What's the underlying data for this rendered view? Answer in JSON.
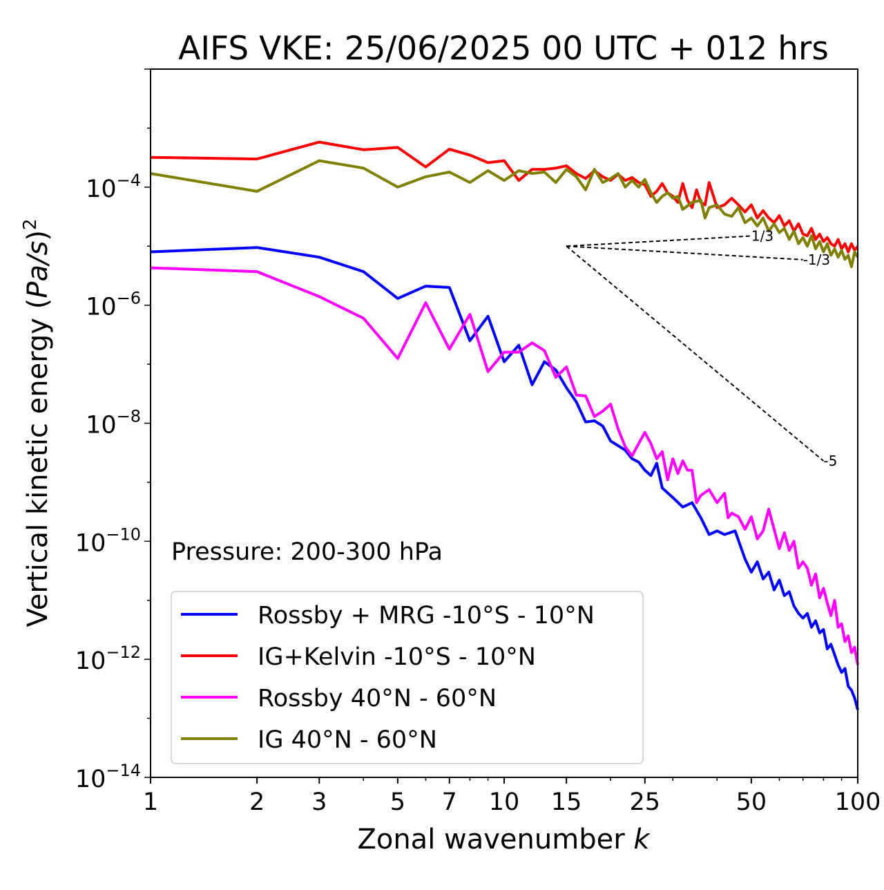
{
  "chart_data": {
    "type": "line",
    "title": "AIFS VKE: 25/06/2025 00 UTC + 012 hrs",
    "xlabel": "Zonal wavenumber k",
    "ylabel": "Vertical kinetic energy (Pa/s)²",
    "x_scale": "log",
    "y_scale": "log",
    "xlim": [
      1,
      100
    ],
    "ylim": [
      1e-14,
      0.01
    ],
    "x_ticks": [
      1,
      2,
      3,
      5,
      7,
      10,
      15,
      25,
      50,
      100
    ],
    "y_ticks": [
      {
        "value": 0.0001,
        "base": "10",
        "exp": "−4"
      },
      {
        "value": 1e-06,
        "base": "10",
        "exp": "−6"
      },
      {
        "value": 1e-08,
        "base": "10",
        "exp": "−8"
      },
      {
        "value": 1e-10,
        "base": "10",
        "exp": "−10"
      },
      {
        "value": 1e-12,
        "base": "10",
        "exp": "−12"
      },
      {
        "value": 1e-14,
        "base": "10",
        "exp": "−14"
      }
    ],
    "grid": false,
    "legend_position": "lower-left",
    "annotation": "Pressure: 200-300 hPa",
    "reference_slopes": [
      {
        "label": "1/3",
        "x": [
          15,
          50
        ],
        "y": [
          1e-05,
          1.49e-05
        ]
      },
      {
        "label": "-1/3",
        "x": [
          15,
          70
        ],
        "y": [
          1e-05,
          5.9e-06
        ]
      },
      {
        "label": "-5",
        "x": [
          15,
          80
        ],
        "y": [
          1e-05,
          2.3e-09
        ]
      }
    ],
    "series": [
      {
        "name": "Rossby + MRG -10°S - 10°N",
        "color": "#0000ff",
        "points": [
          [
            1,
            8e-06
          ],
          [
            2,
            9.5e-06
          ],
          [
            3,
            6.5e-06
          ],
          [
            4,
            3.7e-06
          ],
          [
            5,
            1.3e-06
          ],
          [
            6,
            2.1e-06
          ],
          [
            7,
            2e-06
          ],
          [
            8,
            2.5e-07
          ],
          [
            9,
            6.5e-07
          ],
          [
            10,
            1.1e-07
          ],
          [
            11,
            2.1e-07
          ],
          [
            12,
            4.5e-08
          ],
          [
            13,
            1.1e-07
          ],
          [
            14,
            8e-08
          ],
          [
            15,
            4e-08
          ],
          [
            16,
            2.3e-08
          ],
          [
            17,
            1.05e-08
          ],
          [
            18,
            1.1e-08
          ],
          [
            19,
            9e-09
          ],
          [
            20,
            5e-09
          ],
          [
            22,
            3.5e-09
          ],
          [
            23,
            2.5e-09
          ],
          [
            24,
            2.2e-09
          ],
          [
            25,
            1.6e-09
          ],
          [
            26,
            1.3e-09
          ],
          [
            27,
            2.1e-09
          ],
          [
            28,
            8e-10
          ],
          [
            30,
            5.5e-10
          ],
          [
            32,
            3.8e-10
          ],
          [
            34,
            4.5e-10
          ],
          [
            36,
            2.5e-10
          ],
          [
            38,
            1.3e-10
          ],
          [
            40,
            1.5e-10
          ],
          [
            42,
            1.3e-10
          ],
          [
            45,
            1.5e-10
          ],
          [
            48,
            5e-11
          ],
          [
            50,
            3e-11
          ],
          [
            52,
            4.5e-11
          ],
          [
            54,
            2.3e-11
          ],
          [
            56,
            3e-11
          ],
          [
            58,
            1.5e-11
          ],
          [
            60,
            2.2e-11
          ],
          [
            62,
            1.2e-11
          ],
          [
            64,
            1.4e-11
          ],
          [
            66,
            8e-12
          ],
          [
            68,
            6e-12
          ],
          [
            70,
            5e-12
          ],
          [
            72,
            6e-12
          ],
          [
            74,
            3.5e-12
          ],
          [
            76,
            4.5e-12
          ],
          [
            78,
            2.8e-12
          ],
          [
            80,
            3.2e-12
          ],
          [
            82,
            1.5e-12
          ],
          [
            84,
            1.8e-12
          ],
          [
            86,
            1.2e-12
          ],
          [
            88,
            8e-13
          ],
          [
            90,
            6e-13
          ],
          [
            92,
            7e-13
          ],
          [
            94,
            3.5e-13
          ],
          [
            96,
            3e-13
          ],
          [
            98,
            2.2e-13
          ],
          [
            100,
            1.4e-13
          ]
        ]
      },
      {
        "name": "IG+Kelvin -10°S - 10°N",
        "color": "#ff0000",
        "points": [
          [
            1,
            0.00032
          ],
          [
            2,
            0.0003
          ],
          [
            3,
            0.00058
          ],
          [
            4,
            0.00043
          ],
          [
            5,
            0.00047
          ],
          [
            6,
            0.00022
          ],
          [
            7,
            0.00044
          ],
          [
            8,
            0.00035
          ],
          [
            9,
            0.00026
          ],
          [
            10,
            0.00028
          ],
          [
            11,
            0.00013
          ],
          [
            12,
            0.0002
          ],
          [
            13,
            0.0002
          ],
          [
            14,
            0.00021
          ],
          [
            15,
            0.00023
          ],
          [
            16,
            0.00017
          ],
          [
            17,
            0.00014
          ],
          [
            18,
            0.00019
          ],
          [
            19,
            0.00015
          ],
          [
            20,
            0.00013
          ],
          [
            21,
            0.000165
          ],
          [
            22,
            0.00013
          ],
          [
            23,
            0.000145
          ],
          [
            24,
            0.00012
          ],
          [
            25,
            0.00011
          ],
          [
            26,
            7e-05
          ],
          [
            27,
            8.5e-05
          ],
          [
            28,
            0.000115
          ],
          [
            29,
            8e-05
          ],
          [
            30,
            7e-05
          ],
          [
            31,
            5.5e-05
          ],
          [
            32,
            0.000115
          ],
          [
            33,
            6e-05
          ],
          [
            34,
            4.5e-05
          ],
          [
            35,
            9e-05
          ],
          [
            36,
            5.5e-05
          ],
          [
            37,
            5e-05
          ],
          [
            38,
            0.00012
          ],
          [
            40,
            4.5e-05
          ],
          [
            42,
            5e-05
          ],
          [
            44,
            6.5e-05
          ],
          [
            46,
            5e-05
          ],
          [
            48,
            3.8e-05
          ],
          [
            50,
            5e-05
          ],
          [
            52,
            3e-05
          ],
          [
            54,
            4e-05
          ],
          [
            56,
            3e-05
          ],
          [
            58,
            2.5e-05
          ],
          [
            60,
            3.3e-05
          ],
          [
            62,
            2.2e-05
          ],
          [
            64,
            2.7e-05
          ],
          [
            66,
            1.8e-05
          ],
          [
            68,
            2.4e-05
          ],
          [
            70,
            1.6e-05
          ],
          [
            72,
            1.5e-05
          ],
          [
            74,
            2e-05
          ],
          [
            76,
            1.3e-05
          ],
          [
            78,
            1.6e-05
          ],
          [
            80,
            1.2e-05
          ],
          [
            82,
            1.4e-05
          ],
          [
            84,
            1.1e-05
          ],
          [
            86,
            1e-05
          ],
          [
            88,
            1.3e-05
          ],
          [
            90,
            9e-06
          ],
          [
            92,
            1.1e-05
          ],
          [
            94,
            8e-06
          ],
          [
            96,
            1.1e-05
          ],
          [
            98,
            8.5e-06
          ],
          [
            100,
            1e-05
          ]
        ]
      },
      {
        "name": "Rossby 40°N - 60°N",
        "color": "#ff00ff",
        "points": [
          [
            1,
            4.3e-06
          ],
          [
            2,
            3.7e-06
          ],
          [
            3,
            1.4e-06
          ],
          [
            4,
            6e-07
          ],
          [
            5,
            1.25e-07
          ],
          [
            6,
            1.1e-06
          ],
          [
            7,
            1.8e-07
          ],
          [
            8,
            7e-07
          ],
          [
            9,
            7.5e-08
          ],
          [
            10,
            1.6e-07
          ],
          [
            11,
            1.6e-07
          ],
          [
            12,
            2.3e-07
          ],
          [
            13,
            1.7e-07
          ],
          [
            14,
            6e-08
          ],
          [
            15,
            9e-08
          ],
          [
            16,
            3e-08
          ],
          [
            17,
            2.9e-08
          ],
          [
            18,
            1.3e-08
          ],
          [
            19,
            1.6e-08
          ],
          [
            20,
            2.1e-08
          ],
          [
            21,
            8e-09
          ],
          [
            22,
            4e-09
          ],
          [
            23,
            2.8e-09
          ],
          [
            24,
            4.5e-09
          ],
          [
            25,
            7e-09
          ],
          [
            26,
            4.5e-09
          ],
          [
            27,
            2.5e-09
          ],
          [
            28,
            3.3e-09
          ],
          [
            29,
            1.1e-09
          ],
          [
            30,
            2.5e-09
          ],
          [
            31,
            1.4e-09
          ],
          [
            32,
            2.3e-09
          ],
          [
            33,
            1.6e-09
          ],
          [
            34,
            1.6e-09
          ],
          [
            35,
            4.5e-10
          ],
          [
            36,
            6e-10
          ],
          [
            38,
            7.5e-10
          ],
          [
            40,
            4.5e-10
          ],
          [
            42,
            6.5e-10
          ],
          [
            43,
            2.5e-10
          ],
          [
            44,
            3e-10
          ],
          [
            46,
            2.6e-10
          ],
          [
            48,
            1.6e-10
          ],
          [
            50,
            2.6e-10
          ],
          [
            52,
            1.1e-10
          ],
          [
            54,
            1.5e-10
          ],
          [
            56,
            3.5e-10
          ],
          [
            58,
            1.6e-10
          ],
          [
            60,
            7.5e-11
          ],
          [
            62,
            1.4e-10
          ],
          [
            64,
            7e-11
          ],
          [
            66,
            1e-10
          ],
          [
            68,
            3.5e-11
          ],
          [
            70,
            4.5e-11
          ],
          [
            72,
            3.5e-11
          ],
          [
            74,
            1.8e-11
          ],
          [
            76,
            2.8e-11
          ],
          [
            78,
            1.1e-11
          ],
          [
            80,
            1.6e-11
          ],
          [
            82,
            9e-12
          ],
          [
            84,
            5.5e-12
          ],
          [
            86,
            1e-11
          ],
          [
            88,
            3.5e-12
          ],
          [
            90,
            4e-12
          ],
          [
            92,
            2e-12
          ],
          [
            94,
            2.5e-12
          ],
          [
            96,
            1.3e-12
          ],
          [
            98,
            1.6e-12
          ],
          [
            100,
            8e-13
          ]
        ]
      },
      {
        "name": "IG 40°N - 60°N",
        "color": "#808000",
        "points": [
          [
            1,
            0.00017
          ],
          [
            2,
            8.5e-05
          ],
          [
            3,
            0.00028
          ],
          [
            4,
            0.00021
          ],
          [
            5,
            0.0001
          ],
          [
            6,
            0.00015
          ],
          [
            7,
            0.00018
          ],
          [
            8,
            0.00012
          ],
          [
            9,
            0.00019
          ],
          [
            10,
            0.00013
          ],
          [
            11,
            0.00019
          ],
          [
            12,
            0.00017
          ],
          [
            13,
            0.00018
          ],
          [
            14,
            0.00012
          ],
          [
            15,
            0.0002
          ],
          [
            16,
            0.00015
          ],
          [
            17,
            9e-05
          ],
          [
            18,
            0.0002
          ],
          [
            19,
            0.00012
          ],
          [
            20,
            0.00014
          ],
          [
            21,
            0.00017
          ],
          [
            22,
            0.0001
          ],
          [
            23,
            0.00013
          ],
          [
            24,
            0.0001
          ],
          [
            25,
            0.000135
          ],
          [
            26,
            8e-05
          ],
          [
            27,
            5.5e-05
          ],
          [
            28,
            7e-05
          ],
          [
            29,
            8e-05
          ],
          [
            30,
            6.5e-05
          ],
          [
            31,
            7e-05
          ],
          [
            32,
            4.2e-05
          ],
          [
            34,
            5.5e-05
          ],
          [
            36,
            6e-05
          ],
          [
            37,
            3e-05
          ],
          [
            38,
            4.5e-05
          ],
          [
            40,
            5e-05
          ],
          [
            42,
            3.5e-05
          ],
          [
            44,
            3.2e-05
          ],
          [
            46,
            4.5e-05
          ],
          [
            48,
            2.5e-05
          ],
          [
            50,
            3e-05
          ],
          [
            52,
            2.2e-05
          ],
          [
            54,
            3e-05
          ],
          [
            56,
            1.8e-05
          ],
          [
            58,
            2.4e-05
          ],
          [
            60,
            1.7e-05
          ],
          [
            62,
            2e-05
          ],
          [
            64,
            1.3e-05
          ],
          [
            66,
            1.8e-05
          ],
          [
            68,
            1.1e-05
          ],
          [
            70,
            1.4e-05
          ],
          [
            72,
            1e-05
          ],
          [
            74,
            1.5e-05
          ],
          [
            76,
            9e-06
          ],
          [
            78,
            1.2e-05
          ],
          [
            80,
            8e-06
          ],
          [
            82,
            1.1e-05
          ],
          [
            84,
            7e-06
          ],
          [
            86,
            9e-06
          ],
          [
            88,
            6.5e-06
          ],
          [
            90,
            8.5e-06
          ],
          [
            92,
            6e-06
          ],
          [
            94,
            7e-06
          ],
          [
            96,
            4.5e-06
          ],
          [
            98,
            8e-06
          ],
          [
            100,
            6.5e-06
          ]
        ]
      }
    ]
  }
}
